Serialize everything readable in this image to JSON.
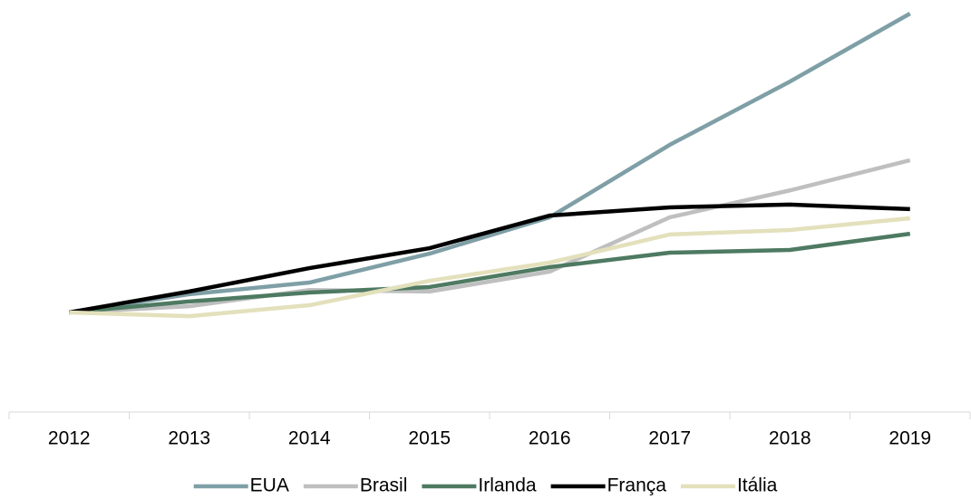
{
  "chart_data": {
    "type": "line",
    "categories": [
      "2012",
      "2013",
      "2014",
      "2015",
      "2016",
      "2017",
      "2018",
      "2019"
    ],
    "series": [
      {
        "name": "EUA",
        "color": "#7f9fa6",
        "values": [
          100,
          107.3,
          112,
          123.6,
          138.2,
          167.3,
          192.7,
          220
        ]
      },
      {
        "name": "Brasil",
        "color": "#bfbfbf",
        "values": [
          100,
          102.5,
          109,
          108.4,
          116.4,
          138.2,
          149,
          161.1
        ]
      },
      {
        "name": "Irlanda",
        "color": "#4e7a62",
        "values": [
          100,
          104.4,
          108,
          110.2,
          118.2,
          124,
          125.1,
          131.6
        ]
      },
      {
        "name": "França",
        "color": "#000000",
        "values": [
          100,
          108.4,
          117.8,
          125.8,
          138.9,
          142.2,
          143.3,
          141.5
        ]
      },
      {
        "name": "Itália",
        "color": "#e3e0bc",
        "values": [
          100,
          98.5,
          102.9,
          112.7,
          120,
          131.3,
          133.1,
          137.8
        ]
      }
    ],
    "ylim": [
      60,
      220
    ],
    "legend": "bottom"
  }
}
